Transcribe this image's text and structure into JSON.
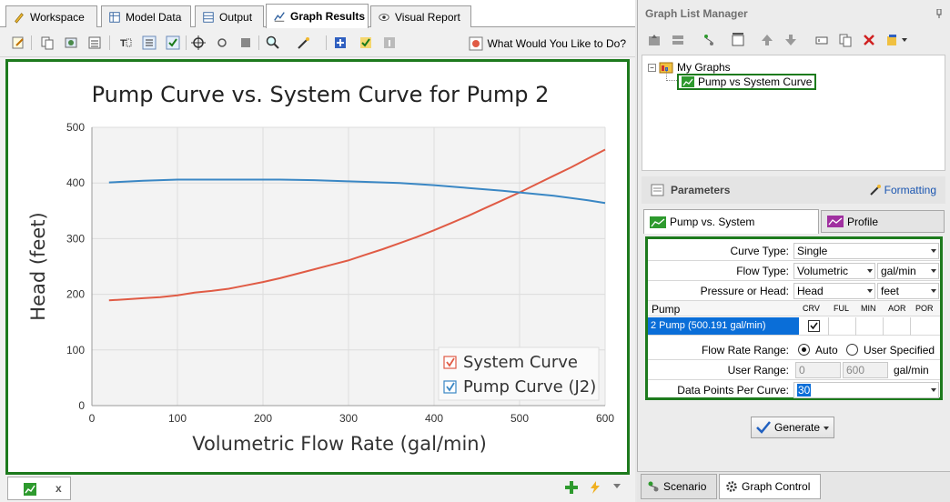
{
  "tabs": [
    {
      "label": "Workspace",
      "icon": "pencil-icon"
    },
    {
      "label": "Model Data",
      "icon": "table-icon"
    },
    {
      "label": "Output",
      "icon": "grid-icon"
    },
    {
      "label": "Graph Results",
      "icon": "chart-icon"
    },
    {
      "label": "Visual Report",
      "icon": "eye-icon"
    }
  ],
  "toolbar": {
    "help_label": "What Would You Like to Do?"
  },
  "chart_data": {
    "type": "line",
    "title": "Pump Curve vs. System Curve for Pump 2",
    "xlabel": "Volumetric Flow Rate (gal/min)",
    "ylabel": "Head (feet)",
    "xlim": [
      0,
      600
    ],
    "ylim": [
      0,
      500
    ],
    "xticks": [
      "0",
      "100",
      "200",
      "300",
      "400",
      "500",
      "600"
    ],
    "yticks": [
      "0",
      "100",
      "200",
      "300",
      "400",
      "500"
    ],
    "grid": true,
    "legend_position": "bottom-right",
    "series": [
      {
        "name": "System Curve",
        "color": "#e05b45",
        "points": [
          [
            20,
            189
          ],
          [
            40,
            191
          ],
          [
            60,
            193
          ],
          [
            80,
            195
          ],
          [
            100,
            198
          ],
          [
            120,
            203
          ],
          [
            140,
            206
          ],
          [
            160,
            210
          ],
          [
            180,
            216
          ],
          [
            200,
            222
          ],
          [
            220,
            229
          ],
          [
            240,
            237
          ],
          [
            260,
            245
          ],
          [
            280,
            253
          ],
          [
            300,
            261
          ],
          [
            320,
            271
          ],
          [
            340,
            281
          ],
          [
            360,
            292
          ],
          [
            380,
            303
          ],
          [
            400,
            315
          ],
          [
            420,
            328
          ],
          [
            440,
            341
          ],
          [
            460,
            355
          ],
          [
            480,
            369
          ],
          [
            500,
            383
          ],
          [
            520,
            398
          ],
          [
            540,
            413
          ],
          [
            560,
            428
          ],
          [
            580,
            444
          ],
          [
            600,
            460
          ]
        ]
      },
      {
        "name": "Pump Curve (J2)",
        "color": "#3a87c4",
        "points": [
          [
            20,
            401
          ],
          [
            60,
            404
          ],
          [
            100,
            406
          ],
          [
            160,
            406
          ],
          [
            220,
            406
          ],
          [
            260,
            405
          ],
          [
            300,
            403
          ],
          [
            360,
            400
          ],
          [
            400,
            396
          ],
          [
            440,
            391
          ],
          [
            480,
            386
          ],
          [
            500,
            383
          ],
          [
            540,
            377
          ],
          [
            580,
            369
          ],
          [
            600,
            364
          ]
        ]
      }
    ]
  },
  "bottom_graph_tab": {
    "close": "x"
  },
  "graph_list": {
    "title": "Graph List Manager",
    "root": "My Graphs",
    "child": "Pump vs System Curve"
  },
  "params": {
    "title": "Parameters",
    "formatting": "Formatting",
    "tab_pump": "Pump vs. System",
    "tab_profile": "Profile",
    "curve_type_label": "Curve Type:",
    "curve_type": "Single",
    "flow_type_label": "Flow Type:",
    "flow_type": "Volumetric",
    "flow_unit": "gal/min",
    "pressure_label": "Pressure or Head:",
    "pressure_type": "Head",
    "pressure_unit": "feet",
    "pump_col": "Pump",
    "cols": [
      "CRV",
      "FUL",
      "MIN",
      "AOR",
      "POR"
    ],
    "pump_row": "2  Pump  (500.191 gal/min)",
    "flow_range_label": "Flow Rate Range:",
    "auto_label": "Auto",
    "user_spec_label": "User Specified",
    "user_range_label": "User Range:",
    "user_range_min": "0",
    "user_range_max": "600",
    "user_range_unit": "gal/min",
    "dpp_label": "Data Points Per Curve:",
    "dpp_value": "30"
  },
  "generate_label": "Generate",
  "bottom_tabs": {
    "scenario": "Scenario",
    "graph_control": "Graph Control"
  }
}
